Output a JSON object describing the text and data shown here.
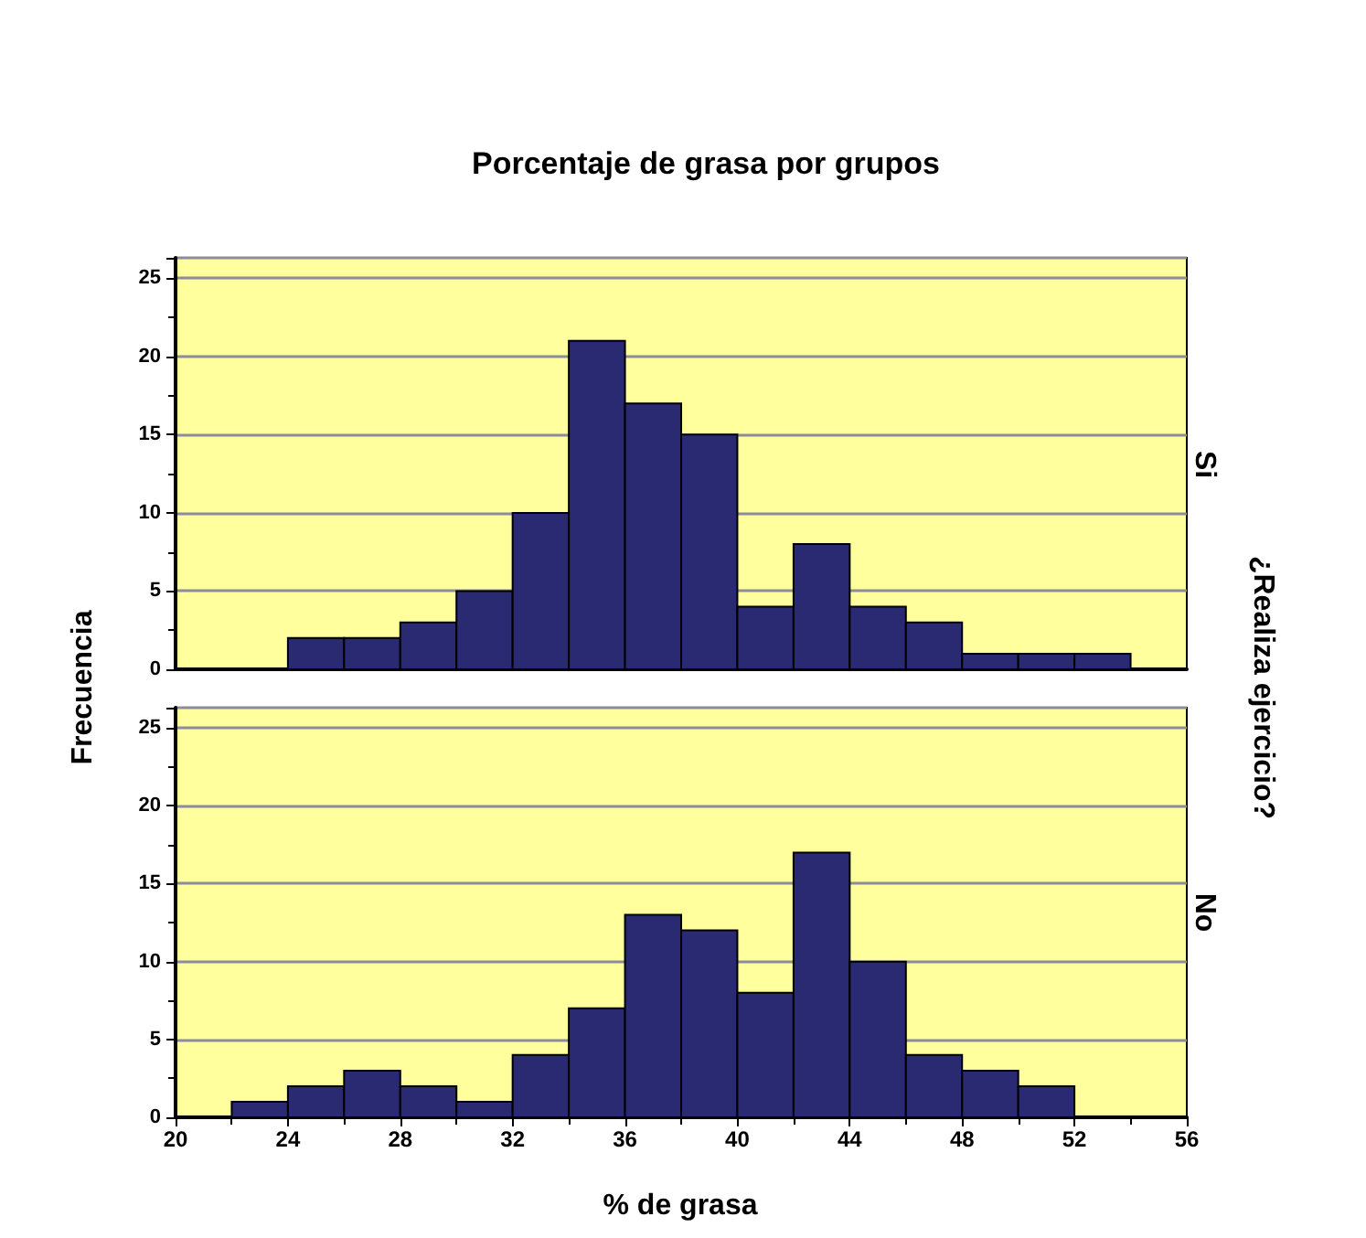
{
  "chart_data": [
    {
      "type": "histogram",
      "title": "Porcentaje de grasa por grupos",
      "ylabel": "Frecuencia",
      "y2label": "¿Realiza ejercicio?",
      "annotations": [
        "Si"
      ],
      "bins": [
        24,
        26,
        28,
        30,
        32,
        34,
        36,
        38,
        40,
        42,
        44,
        46,
        48,
        50,
        52,
        54
      ],
      "values": [
        2,
        2,
        3,
        5,
        10,
        21,
        17,
        15,
        4,
        8,
        4,
        3,
        1,
        1,
        1
      ],
      "color": "#2a2a72",
      "xlim": [
        20,
        56
      ],
      "xticks": [
        20,
        24,
        28,
        32,
        36,
        40,
        44,
        48,
        52,
        56
      ],
      "ylim": [
        0,
        26.3
      ],
      "yticks": [
        0,
        5,
        10,
        15,
        20,
        25
      ],
      "grid": "y",
      "tick_labels": "y"
    },
    {
      "type": "histogram",
      "xlabel": "% de grasa",
      "annotations": [
        "No"
      ],
      "bins": [
        22,
        24,
        26,
        28,
        30,
        32,
        34,
        36,
        38,
        40,
        42,
        44,
        46,
        48,
        50,
        52
      ],
      "values": [
        1,
        2,
        3,
        2,
        1,
        4,
        7,
        13,
        12,
        8,
        17,
        10,
        4,
        3,
        2
      ],
      "color": "#2a2a72",
      "xlim": [
        20,
        56
      ],
      "xticks": [
        20,
        24,
        28,
        32,
        36,
        40,
        44,
        48,
        52,
        56
      ],
      "ylim": [
        0,
        26.3
      ],
      "yticks": [
        0,
        5,
        10,
        15,
        20,
        25
      ],
      "grid": "y"
    }
  ]
}
